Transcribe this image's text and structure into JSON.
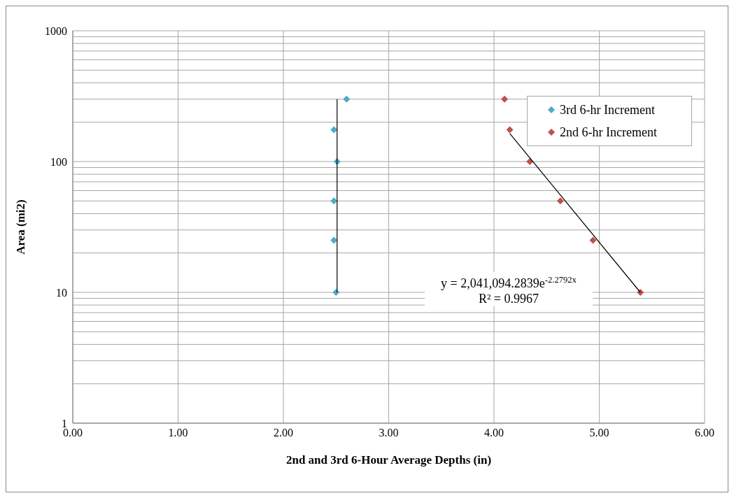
{
  "chart_data": {
    "type": "scatter",
    "xlabel": "2nd and 3rd 6-Hour Average Depths (in)",
    "ylabel": "Area (mi2)",
    "xlim": [
      0,
      6
    ],
    "xticks": [
      {
        "value": 0,
        "label": "0.00"
      },
      {
        "value": 1,
        "label": "1.00"
      },
      {
        "value": 2,
        "label": "2.00"
      },
      {
        "value": 3,
        "label": "3.00"
      },
      {
        "value": 4,
        "label": "4.00"
      },
      {
        "value": 5,
        "label": "5.00"
      },
      {
        "value": 6,
        "label": "6.00"
      }
    ],
    "ylim": [
      1,
      1000
    ],
    "log": "y",
    "yticks": [
      1,
      {
        "value": 2,
        "label": null
      },
      {
        "value": 3,
        "label": null
      },
      {
        "value": 4,
        "label": null
      },
      {
        "value": 5,
        "label": null
      },
      {
        "value": 6,
        "label": null
      },
      {
        "value": 7,
        "label": null
      },
      {
        "value": 8,
        "label": null
      },
      {
        "value": 9,
        "label": null
      },
      10,
      {
        "value": 20,
        "label": null
      },
      {
        "value": 30,
        "label": null
      },
      {
        "value": 40,
        "label": null
      },
      {
        "value": 50,
        "label": null
      },
      {
        "value": 60,
        "label": null
      },
      {
        "value": 70,
        "label": null
      },
      {
        "value": 80,
        "label": null
      },
      {
        "value": 90,
        "label": null
      },
      100,
      {
        "value": 200,
        "label": null
      },
      {
        "value": 300,
        "label": null
      },
      {
        "value": 400,
        "label": null
      },
      {
        "value": 500,
        "label": null
      },
      {
        "value": 600,
        "label": null
      },
      {
        "value": 700,
        "label": null
      },
      {
        "value": 800,
        "label": null
      },
      {
        "value": 900,
        "label": null
      },
      1000
    ],
    "grid": true,
    "legend": "top right",
    "marker": "diamond",
    "series": [
      {
        "name": "3rd 6-hr Increment",
        "color": "#4bacc6",
        "x": [
          2.6,
          2.48,
          2.51,
          2.48,
          2.48,
          2.5
        ],
        "values": [
          300,
          175,
          100,
          50,
          25,
          10
        ]
      },
      {
        "name": "2nd 6-hr Increment",
        "color": "#c0504d",
        "x": [
          4.1,
          4.15,
          4.34,
          4.63,
          4.94,
          5.39
        ],
        "values": [
          300,
          175,
          100,
          50,
          25,
          10
        ]
      },
      {
        "type": "line",
        "marker": "none",
        "color": "#000000",
        "x": [
          2.51,
          2.51
        ],
        "values": [
          10,
          300
        ]
      },
      {
        "type": "line",
        "marker": "none",
        "color": "#000000",
        "x": [
          4.15,
          5.39
        ],
        "values": [
          164,
          10
        ]
      }
    ],
    "annotations": [
      "y = 2,041,094.2839e$^{-2.2792x}$",
      "R² = 0.9967"
    ]
  }
}
